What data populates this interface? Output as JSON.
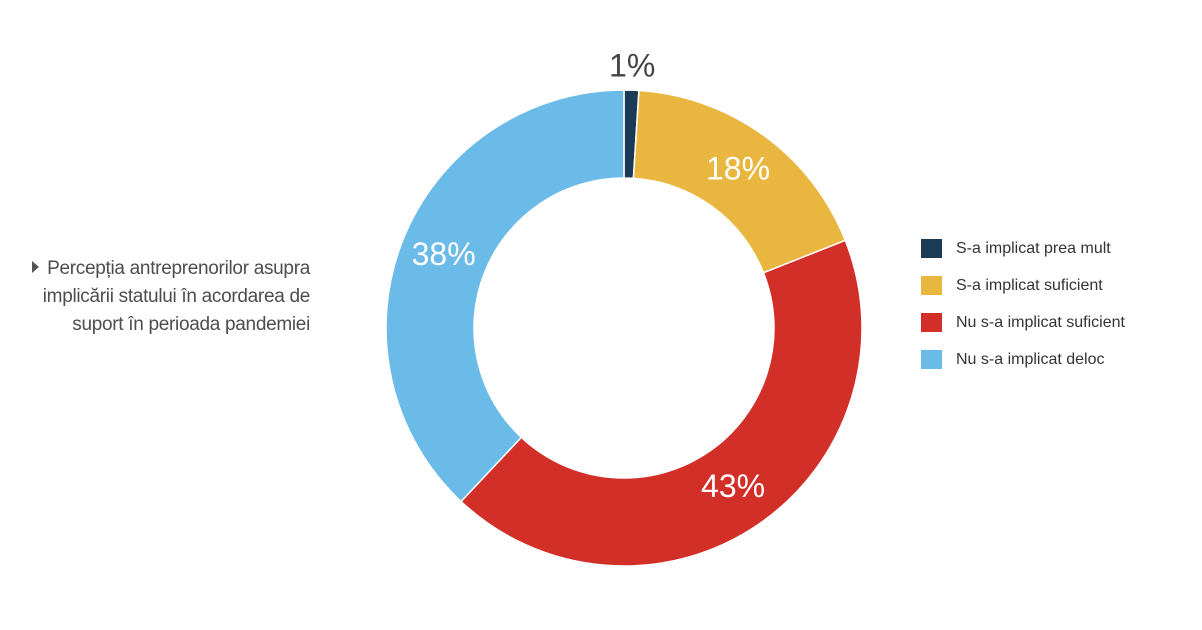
{
  "caption": "Percepția antreprenorilor asupra implicării statului în acordarea de suport în perioada pandemiei",
  "chart_data": {
    "type": "pie",
    "donut": true,
    "title": "Percepția antreprenorilor asupra implicării statului în acordarea de suport în perioada pandemiei",
    "categories": [
      "S-a implicat prea mult",
      "S-a implicat suficient",
      "Nu s-a implicat suficient",
      "Nu s-a implicat deloc"
    ],
    "values": [
      1,
      18,
      43,
      38
    ],
    "value_labels": [
      "1%",
      "18%",
      "43%",
      "38%"
    ],
    "colors": [
      "#1a3a56",
      "#e9b73f",
      "#d12f27",
      "#6bbbe8"
    ],
    "legend_position": "right"
  }
}
